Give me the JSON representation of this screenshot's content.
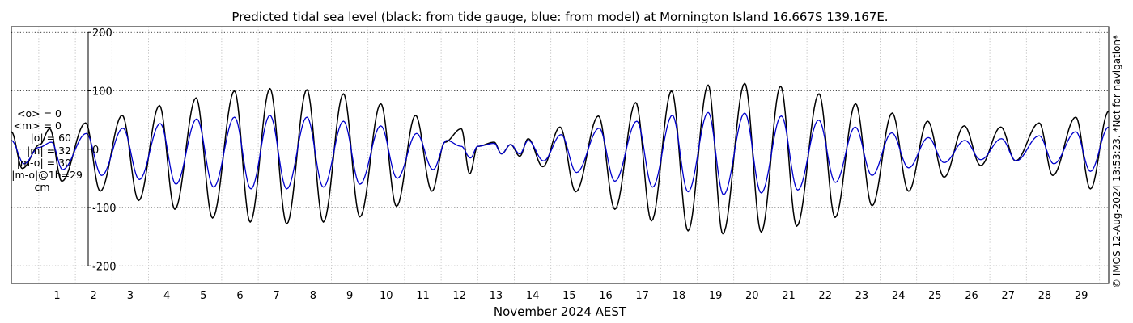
{
  "chart_data": {
    "type": "line",
    "title": "Predicted tidal sea level (black: from tide gauge, blue: from model) at Mornington Island 16.667S 139.167E.",
    "xlabel": "November 2024 AEST",
    "ylabel": "",
    "xlim": [
      0.25,
      30.25
    ],
    "ylim": [
      -230,
      210
    ],
    "yticks": [
      200,
      100,
      0,
      -100,
      -200
    ],
    "xticks": [
      1,
      2,
      3,
      4,
      5,
      6,
      7,
      8,
      9,
      10,
      11,
      12,
      13,
      14,
      15,
      16,
      17,
      18,
      19,
      20,
      21,
      22,
      23,
      24,
      25,
      26,
      27,
      28,
      29
    ],
    "grid": true,
    "series": [
      {
        "name": "tide gauge",
        "color": "#000000",
        "extrema": [
          [
            0.25,
            30
          ],
          [
            0.55,
            -33
          ],
          [
            1.03,
            8
          ],
          [
            1.3,
            35
          ],
          [
            1.63,
            -55
          ],
          [
            2.28,
            45
          ],
          [
            2.68,
            -72
          ],
          [
            3.28,
            58
          ],
          [
            3.73,
            -88
          ],
          [
            4.3,
            75
          ],
          [
            4.72,
            -103
          ],
          [
            5.3,
            88
          ],
          [
            5.75,
            -118
          ],
          [
            6.35,
            100
          ],
          [
            6.78,
            -125
          ],
          [
            7.32,
            104
          ],
          [
            7.78,
            -128
          ],
          [
            8.33,
            102
          ],
          [
            8.78,
            -125
          ],
          [
            9.33,
            95
          ],
          [
            9.78,
            -116
          ],
          [
            10.35,
            78
          ],
          [
            10.78,
            -98
          ],
          [
            11.3,
            58
          ],
          [
            11.75,
            -72
          ],
          [
            12.1,
            12
          ],
          [
            12.55,
            35
          ],
          [
            12.78,
            -42
          ],
          [
            13.0,
            5
          ],
          [
            13.45,
            12
          ],
          [
            13.65,
            -8
          ],
          [
            13.9,
            8
          ],
          [
            14.15,
            -12
          ],
          [
            14.38,
            18
          ],
          [
            14.78,
            -30
          ],
          [
            15.25,
            38
          ],
          [
            15.68,
            -73
          ],
          [
            16.3,
            57
          ],
          [
            16.75,
            -103
          ],
          [
            17.32,
            80
          ],
          [
            17.75,
            -123
          ],
          [
            18.3,
            100
          ],
          [
            18.75,
            -140
          ],
          [
            19.3,
            110
          ],
          [
            19.7,
            -145
          ],
          [
            20.3,
            113
          ],
          [
            20.75,
            -142
          ],
          [
            21.28,
            108
          ],
          [
            21.72,
            -132
          ],
          [
            22.33,
            95
          ],
          [
            22.77,
            -117
          ],
          [
            23.33,
            78
          ],
          [
            23.78,
            -97
          ],
          [
            24.33,
            62
          ],
          [
            24.78,
            -72
          ],
          [
            25.3,
            48
          ],
          [
            25.75,
            -48
          ],
          [
            26.3,
            40
          ],
          [
            26.75,
            -28
          ],
          [
            27.3,
            38
          ],
          [
            27.7,
            -20
          ],
          [
            28.35,
            45
          ],
          [
            28.72,
            -45
          ],
          [
            29.35,
            55
          ],
          [
            29.75,
            -68
          ],
          [
            30.25,
            65
          ]
        ]
      },
      {
        "name": "model",
        "color": "#0000cc",
        "extrema": [
          [
            0.25,
            15
          ],
          [
            0.6,
            -25
          ],
          [
            1.0,
            3
          ],
          [
            1.35,
            12
          ],
          [
            1.65,
            -35
          ],
          [
            2.3,
            27
          ],
          [
            2.72,
            -45
          ],
          [
            3.3,
            36
          ],
          [
            3.75,
            -52
          ],
          [
            4.32,
            44
          ],
          [
            4.75,
            -60
          ],
          [
            5.32,
            52
          ],
          [
            5.78,
            -65
          ],
          [
            6.35,
            55
          ],
          [
            6.8,
            -68
          ],
          [
            7.32,
            58
          ],
          [
            7.78,
            -68
          ],
          [
            8.33,
            55
          ],
          [
            8.78,
            -65
          ],
          [
            9.33,
            48
          ],
          [
            9.78,
            -60
          ],
          [
            10.35,
            40
          ],
          [
            10.8,
            -50
          ],
          [
            11.33,
            27
          ],
          [
            11.78,
            -35
          ],
          [
            12.15,
            15
          ],
          [
            12.55,
            5
          ],
          [
            12.8,
            -15
          ],
          [
            13.0,
            5
          ],
          [
            13.45,
            10
          ],
          [
            13.65,
            -8
          ],
          [
            13.9,
            8
          ],
          [
            14.15,
            -8
          ],
          [
            14.38,
            15
          ],
          [
            14.8,
            -20
          ],
          [
            15.28,
            25
          ],
          [
            15.7,
            -40
          ],
          [
            16.32,
            36
          ],
          [
            16.75,
            -55
          ],
          [
            17.35,
            48
          ],
          [
            17.78,
            -65
          ],
          [
            18.32,
            58
          ],
          [
            18.75,
            -73
          ],
          [
            19.3,
            63
          ],
          [
            19.72,
            -78
          ],
          [
            20.3,
            62
          ],
          [
            20.75,
            -75
          ],
          [
            21.3,
            57
          ],
          [
            21.75,
            -70
          ],
          [
            22.32,
            50
          ],
          [
            22.78,
            -57
          ],
          [
            23.32,
            38
          ],
          [
            23.78,
            -45
          ],
          [
            24.32,
            28
          ],
          [
            24.78,
            -32
          ],
          [
            25.32,
            20
          ],
          [
            25.75,
            -23
          ],
          [
            26.32,
            15
          ],
          [
            26.75,
            -18
          ],
          [
            27.32,
            18
          ],
          [
            27.72,
            -20
          ],
          [
            28.35,
            23
          ],
          [
            28.75,
            -25
          ],
          [
            29.35,
            30
          ],
          [
            29.75,
            -38
          ],
          [
            30.25,
            38
          ]
        ]
      }
    ]
  },
  "stats": {
    "mean_obs": "<o> = 0",
    "mean_model": "<m> = 0",
    "abs_obs": "|o| = 60",
    "abs_model": "|m| = 32",
    "abs_diff": "|m-o| = 30",
    "abs_diff_1h": "|m-o|@1h=29",
    "unit": "cm"
  },
  "credit": "© IMOS 12-Aug-2024 13:53:23. *Not for navigation*"
}
